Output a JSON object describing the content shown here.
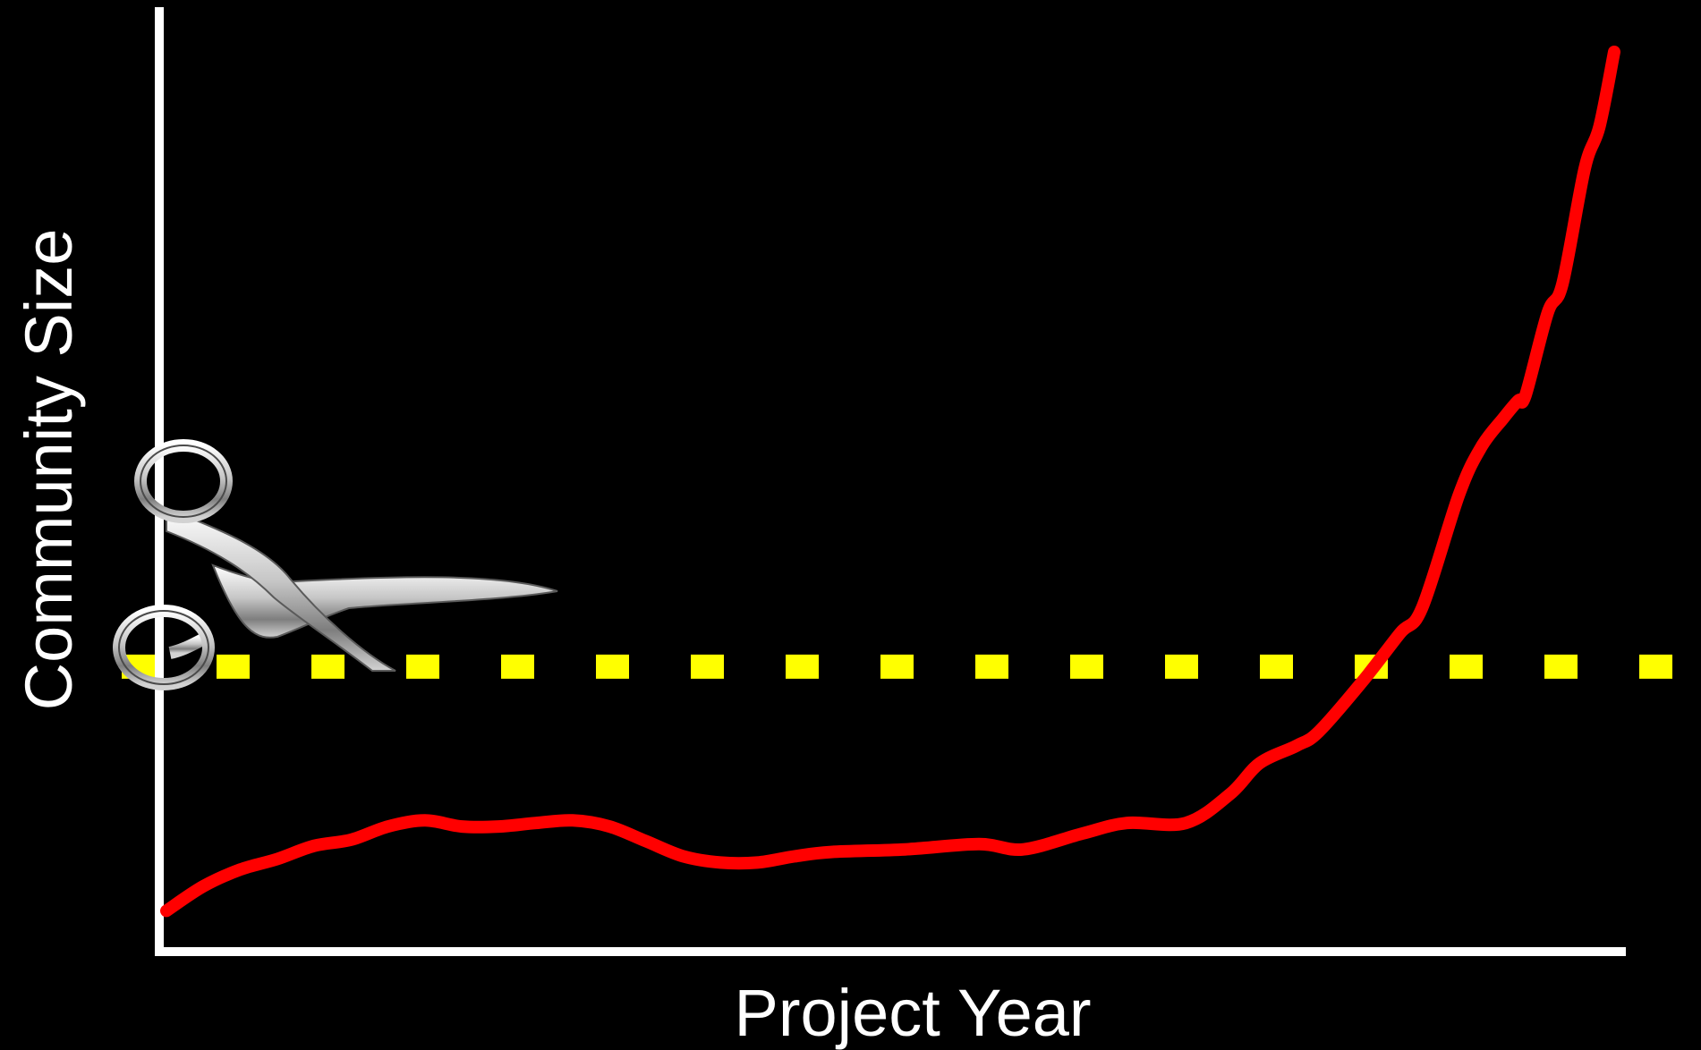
{
  "chart_data": {
    "type": "line",
    "title": "",
    "xlabel": "Project Year",
    "ylabel": "Community Size",
    "xlim": [
      0,
      100
    ],
    "ylim": [
      0,
      100
    ],
    "grid": false,
    "legend": "none",
    "series": [
      {
        "color": "#ff0000",
        "values": [
          [
            0.0,
            2.2
          ],
          [
            2.5,
            5.0
          ],
          [
            5.0,
            6.9
          ],
          [
            7.5,
            8.1
          ],
          [
            10.0,
            9.6
          ],
          [
            12.5,
            10.3
          ],
          [
            15.0,
            11.8
          ],
          [
            17.5,
            12.5
          ],
          [
            20.0,
            11.8
          ],
          [
            22.5,
            11.8
          ],
          [
            25.0,
            12.2
          ],
          [
            27.5,
            12.5
          ],
          [
            30.0,
            11.8
          ],
          [
            32.5,
            10.1
          ],
          [
            35.0,
            8.4
          ],
          [
            37.5,
            7.7
          ],
          [
            40.0,
            7.7
          ],
          [
            42.5,
            8.4
          ],
          [
            45.0,
            8.9
          ],
          [
            50.0,
            9.2
          ],
          [
            55.0,
            9.8
          ],
          [
            58.0,
            9.2
          ],
          [
            62.0,
            11.0
          ],
          [
            65.0,
            12.2
          ],
          [
            69.0,
            12.2
          ],
          [
            72.0,
            15.5
          ],
          [
            74.0,
            19.0
          ],
          [
            76.5,
            21.0
          ],
          [
            78.0,
            22.6
          ],
          [
            81.0,
            28.4
          ],
          [
            83.5,
            33.8
          ],
          [
            85.0,
            36.7
          ],
          [
            87.5,
            49.6
          ],
          [
            89.0,
            55.0
          ],
          [
            90.5,
            58.3
          ],
          [
            91.5,
            60.3
          ],
          [
            92.0,
            60.9
          ],
          [
            93.5,
            70.3
          ],
          [
            94.5,
            73.6
          ],
          [
            96.0,
            86.7
          ],
          [
            97.0,
            91.5
          ],
          [
            98.0,
            100.0
          ]
        ]
      }
    ],
    "threshold": {
      "y": 30.0,
      "style": "dashed",
      "color": "#ffff00"
    },
    "annotations": [
      {
        "icon": "scissors-icon",
        "at": "threshold start"
      }
    ]
  }
}
